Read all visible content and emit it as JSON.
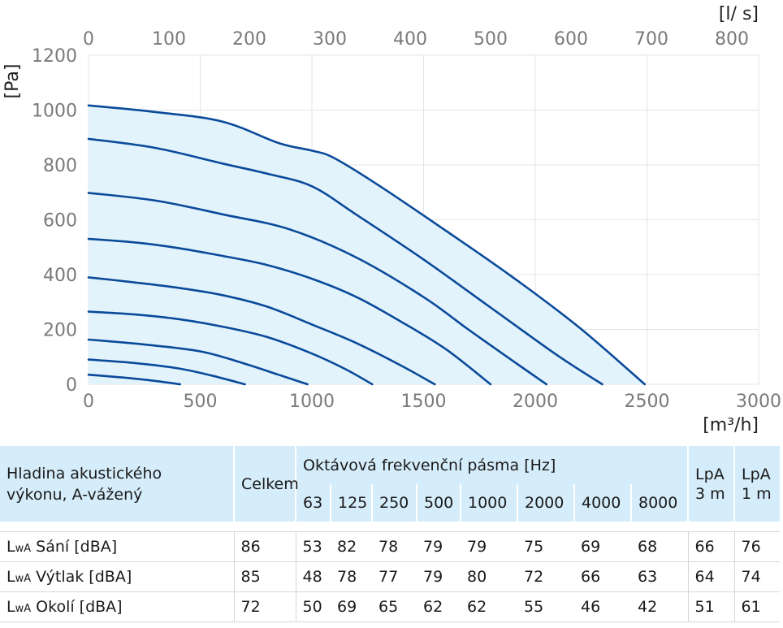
{
  "chart_data": {
    "type": "line",
    "x_axis": {
      "label": "[m³/h]",
      "ticks": [
        0,
        500,
        1000,
        1500,
        2000,
        2500,
        3000
      ],
      "range": [
        0,
        3000
      ]
    },
    "x2_axis": {
      "label": "[l/ s]",
      "ticks": [
        0,
        100,
        200,
        300,
        400,
        500,
        600,
        700,
        800
      ],
      "range": [
        0,
        833.3
      ]
    },
    "y_axis": {
      "label": "[Pa]",
      "ticks": [
        0,
        200,
        400,
        600,
        800,
        1000,
        1200
      ],
      "range": [
        0,
        1200
      ]
    },
    "grid": true,
    "operating_area_color": "#e3f3fb",
    "line_color": "#0a4a9a",
    "series": [
      {
        "points": [
          [
            0,
            35
          ],
          [
            150,
            25
          ],
          [
            300,
            12
          ],
          [
            410,
            0
          ]
        ]
      },
      {
        "points": [
          [
            0,
            90
          ],
          [
            200,
            78
          ],
          [
            400,
            58
          ],
          [
            550,
            32
          ],
          [
            700,
            0
          ]
        ]
      },
      {
        "points": [
          [
            0,
            163
          ],
          [
            250,
            145
          ],
          [
            500,
            120
          ],
          [
            700,
            75
          ],
          [
            850,
            35
          ],
          [
            980,
            0
          ]
        ]
      },
      {
        "points": [
          [
            0,
            265
          ],
          [
            200,
            255
          ],
          [
            400,
            238
          ],
          [
            600,
            210
          ],
          [
            800,
            172
          ],
          [
            1000,
            112
          ],
          [
            1150,
            55
          ],
          [
            1270,
            0
          ]
        ]
      },
      {
        "points": [
          [
            0,
            390
          ],
          [
            200,
            372
          ],
          [
            400,
            352
          ],
          [
            600,
            325
          ],
          [
            800,
            283
          ],
          [
            1000,
            218
          ],
          [
            1200,
            150
          ],
          [
            1400,
            68
          ],
          [
            1550,
            0
          ]
        ]
      },
      {
        "points": [
          [
            0,
            530
          ],
          [
            200,
            518
          ],
          [
            400,
            497
          ],
          [
            600,
            468
          ],
          [
            800,
            435
          ],
          [
            1000,
            385
          ],
          [
            1200,
            318
          ],
          [
            1400,
            228
          ],
          [
            1600,
            128
          ],
          [
            1800,
            0
          ]
        ]
      },
      {
        "points": [
          [
            0,
            698
          ],
          [
            300,
            670
          ],
          [
            600,
            620
          ],
          [
            900,
            565
          ],
          [
            1200,
            462
          ],
          [
            1500,
            318
          ],
          [
            1700,
            200
          ],
          [
            1900,
            85
          ],
          [
            2050,
            0
          ]
        ]
      },
      {
        "points": [
          [
            0,
            895
          ],
          [
            300,
            862
          ],
          [
            600,
            805
          ],
          [
            800,
            768
          ],
          [
            1000,
            722
          ],
          [
            1200,
            618
          ],
          [
            1500,
            455
          ],
          [
            1800,
            280
          ],
          [
            2100,
            105
          ],
          [
            2300,
            0
          ]
        ]
      },
      {
        "points": [
          [
            0,
            1017
          ],
          [
            300,
            993
          ],
          [
            600,
            958
          ],
          [
            850,
            880
          ],
          [
            1000,
            852
          ],
          [
            1100,
            825
          ],
          [
            1300,
            725
          ],
          [
            1600,
            560
          ],
          [
            1900,
            390
          ],
          [
            2200,
            205
          ],
          [
            2490,
            0
          ]
        ]
      }
    ]
  },
  "table": {
    "header": {
      "label_line1": "Hladina akustického",
      "label_line2": "výkonu, A-vážený",
      "total": "Celkem",
      "bands_title": "Oktávová frekvenční pásma [Hz]",
      "bands": [
        "63",
        "125",
        "250",
        "500",
        "1000",
        "2000",
        "4000",
        "8000"
      ],
      "lpa3_line1": "LpA",
      "lpa3_line2": "3 m",
      "lpa1_line1": "LpA",
      "lpa1_line2": "1 m"
    },
    "rows": [
      {
        "prefix": "L",
        "sub": "wA",
        "label": " Sání [dBA]",
        "total": "86",
        "bands": [
          "53",
          "82",
          "78",
          "79",
          "79",
          "75",
          "69",
          "68"
        ],
        "lpa3": "66",
        "lpa1": "76"
      },
      {
        "prefix": "L",
        "sub": "wA",
        "label": " Výtlak [dBA]",
        "total": "85",
        "bands": [
          "48",
          "78",
          "77",
          "79",
          "80",
          "72",
          "66",
          "63"
        ],
        "lpa3": "64",
        "lpa1": "74"
      },
      {
        "prefix": "L",
        "sub": "wA",
        "label": " Okolí [dBA]",
        "total": "72",
        "bands": [
          "50",
          "69",
          "65",
          "62",
          "62",
          "55",
          "46",
          "42"
        ],
        "lpa3": "51",
        "lpa1": "61"
      }
    ]
  }
}
